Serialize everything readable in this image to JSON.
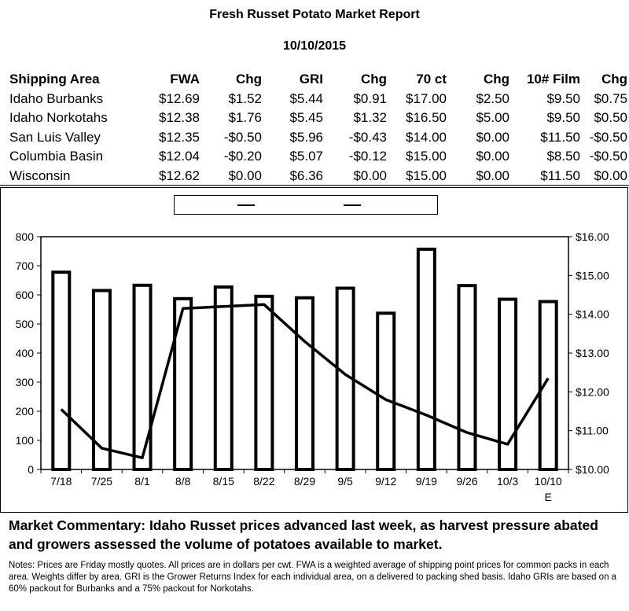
{
  "report": {
    "title": "Fresh Russet Potato Market Report",
    "date": "10/10/2015"
  },
  "table": {
    "headers": [
      "Shipping Area",
      "FWA",
      "Chg",
      "GRI",
      "Chg",
      "70 ct",
      "Chg",
      "10# Film",
      "Chg"
    ],
    "rows": [
      [
        "Idaho Burbanks",
        "$12.69",
        "$1.52",
        "$5.44",
        "$0.91",
        "$17.00",
        "$2.50",
        "$9.50",
        "$0.75"
      ],
      [
        "Idaho Norkotahs",
        "$12.38",
        "$1.76",
        "$5.45",
        "$1.32",
        "$16.50",
        "$5.00",
        "$9.50",
        "$0.50"
      ],
      [
        "San Luis Valley",
        "$12.35",
        "-$0.50",
        "$5.96",
        "-$0.43",
        "$14.00",
        "$0.00",
        "$11.50",
        "-$0.50"
      ],
      [
        "Columbia Basin",
        "$12.04",
        "-$0.20",
        "$5.07",
        "-$0.12",
        "$15.00",
        "$0.00",
        "$8.50",
        "-$0.50"
      ],
      [
        "Wisconsin",
        "$12.62",
        "$0.00",
        "$6.36",
        "$0.00",
        "$15.00",
        "$0.00",
        "$11.50",
        "$0.00"
      ]
    ]
  },
  "chart_data": {
    "type": "bar",
    "categories": [
      "7/18",
      "7/25",
      "8/1",
      "8/8",
      "8/15",
      "8/22",
      "8/29",
      "9/5",
      "9/12",
      "9/19",
      "9/26",
      "10/3",
      "10/10"
    ],
    "category_sublabels": [
      "",
      "",
      "",
      "",
      "",
      "",
      "",
      "",
      "",
      "",
      "",
      "",
      "E"
    ],
    "series": [
      {
        "type": "bar",
        "axis": "left",
        "values": [
          678,
          615,
          633,
          587,
          627,
          595,
          590,
          623,
          537,
          757,
          632,
          585,
          577
        ]
      },
      {
        "type": "line",
        "axis": "right",
        "values": [
          11.55,
          10.55,
          10.3,
          14.15,
          14.2,
          14.25,
          13.3,
          12.45,
          11.8,
          11.4,
          10.95,
          10.65,
          12.35
        ]
      }
    ],
    "ylim_left": [
      0,
      800
    ],
    "yticks_left": [
      0,
      100,
      200,
      300,
      400,
      500,
      600,
      700,
      800
    ],
    "ylim_right": [
      10,
      16
    ],
    "yticks_right": [
      "$10.00",
      "$11.00",
      "$12.00",
      "$13.00",
      "$14.00",
      "$15.00",
      "$16.00"
    ],
    "legend": {
      "position": "top-center",
      "entries": [
        "",
        ""
      ]
    },
    "grid": false
  },
  "commentary": "Market Commentary: Idaho Russet prices advanced last week, as harvest pressure abated and growers assessed the volume of potatoes available to market.",
  "notes": "Notes: Prices are Friday mostly quotes. All prices are in dollars per cwt. FWA is a weighted average of shipping point prices for  common packs in each area. Weights differ by area. GRI is the Grower Returns Index for each individual area, on a delivered to packing shed basis. Idaho GRIs are based on a 60% packout for Burbanks and a 75% packout for Norkotahs."
}
